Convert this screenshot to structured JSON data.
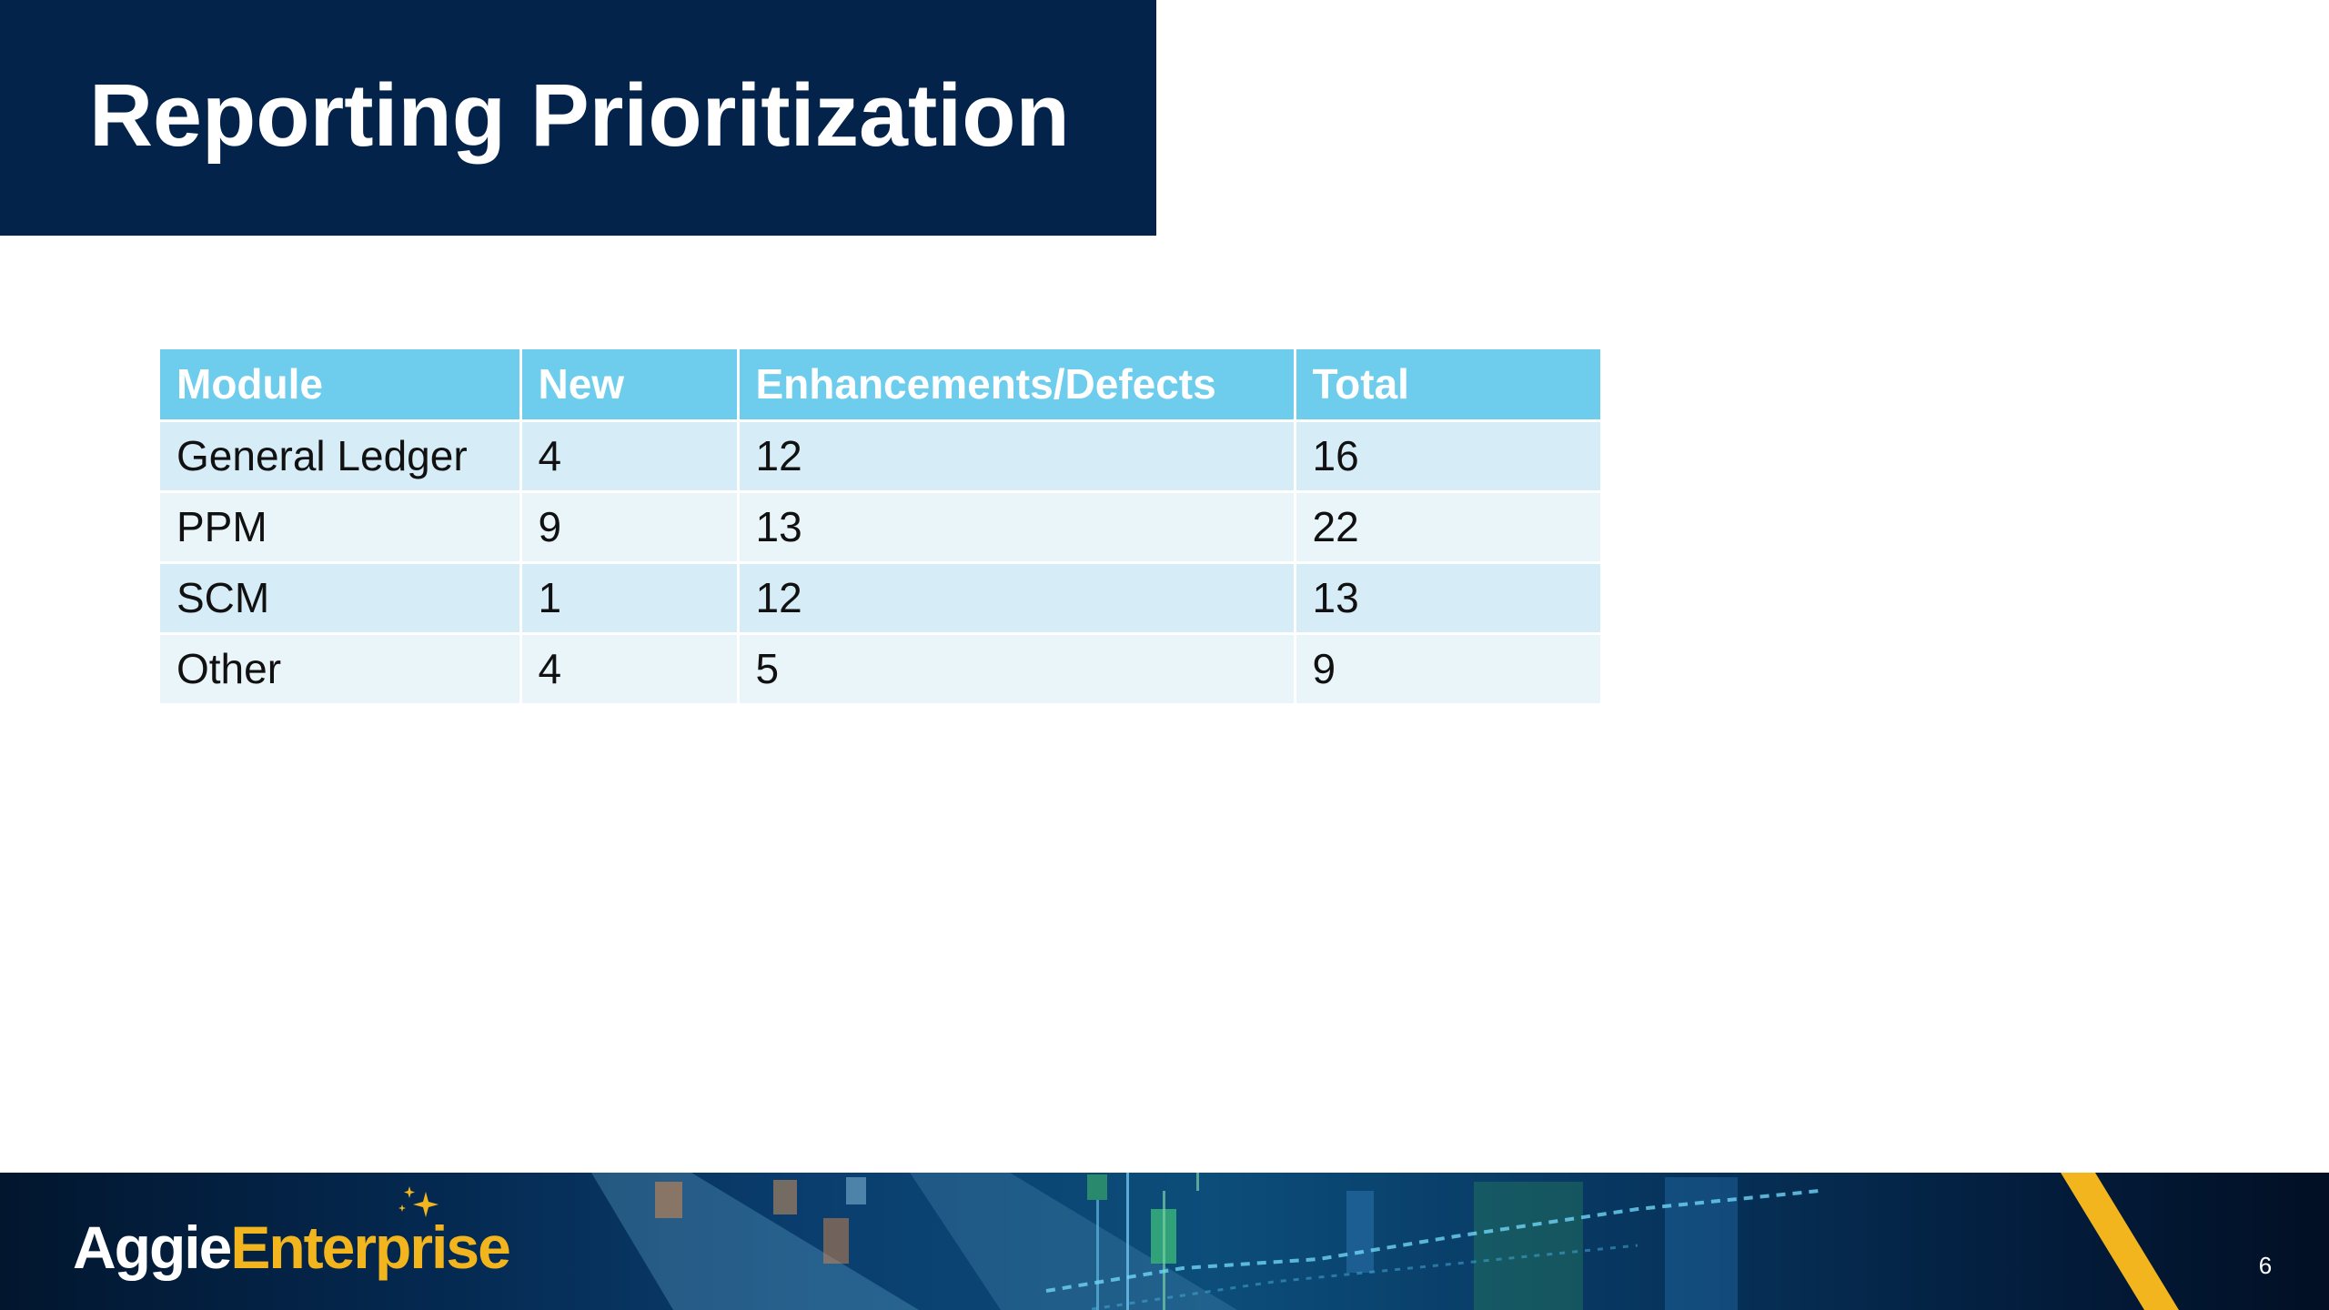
{
  "slide": {
    "title": "Reporting Prioritization",
    "page_number": "6"
  },
  "table": {
    "headers": [
      "Module",
      "New",
      "Enhancements/Defects",
      "Total"
    ],
    "rows": [
      [
        "General Ledger",
        "4",
        "12",
        "16"
      ],
      [
        "PPM",
        "9",
        "13",
        "22"
      ],
      [
        "SCM",
        "1",
        "12",
        "13"
      ],
      [
        "Other",
        "4",
        "5",
        "9"
      ]
    ]
  },
  "footer": {
    "logo_part1": "Aggie",
    "logo_part2": "Enterprise"
  },
  "colors": {
    "title_band": "#03234b",
    "table_header": "#6ecdec",
    "row_odd": "#d6ecf7",
    "row_even": "#eaf5fa",
    "logo_accent": "#f2b51d"
  }
}
